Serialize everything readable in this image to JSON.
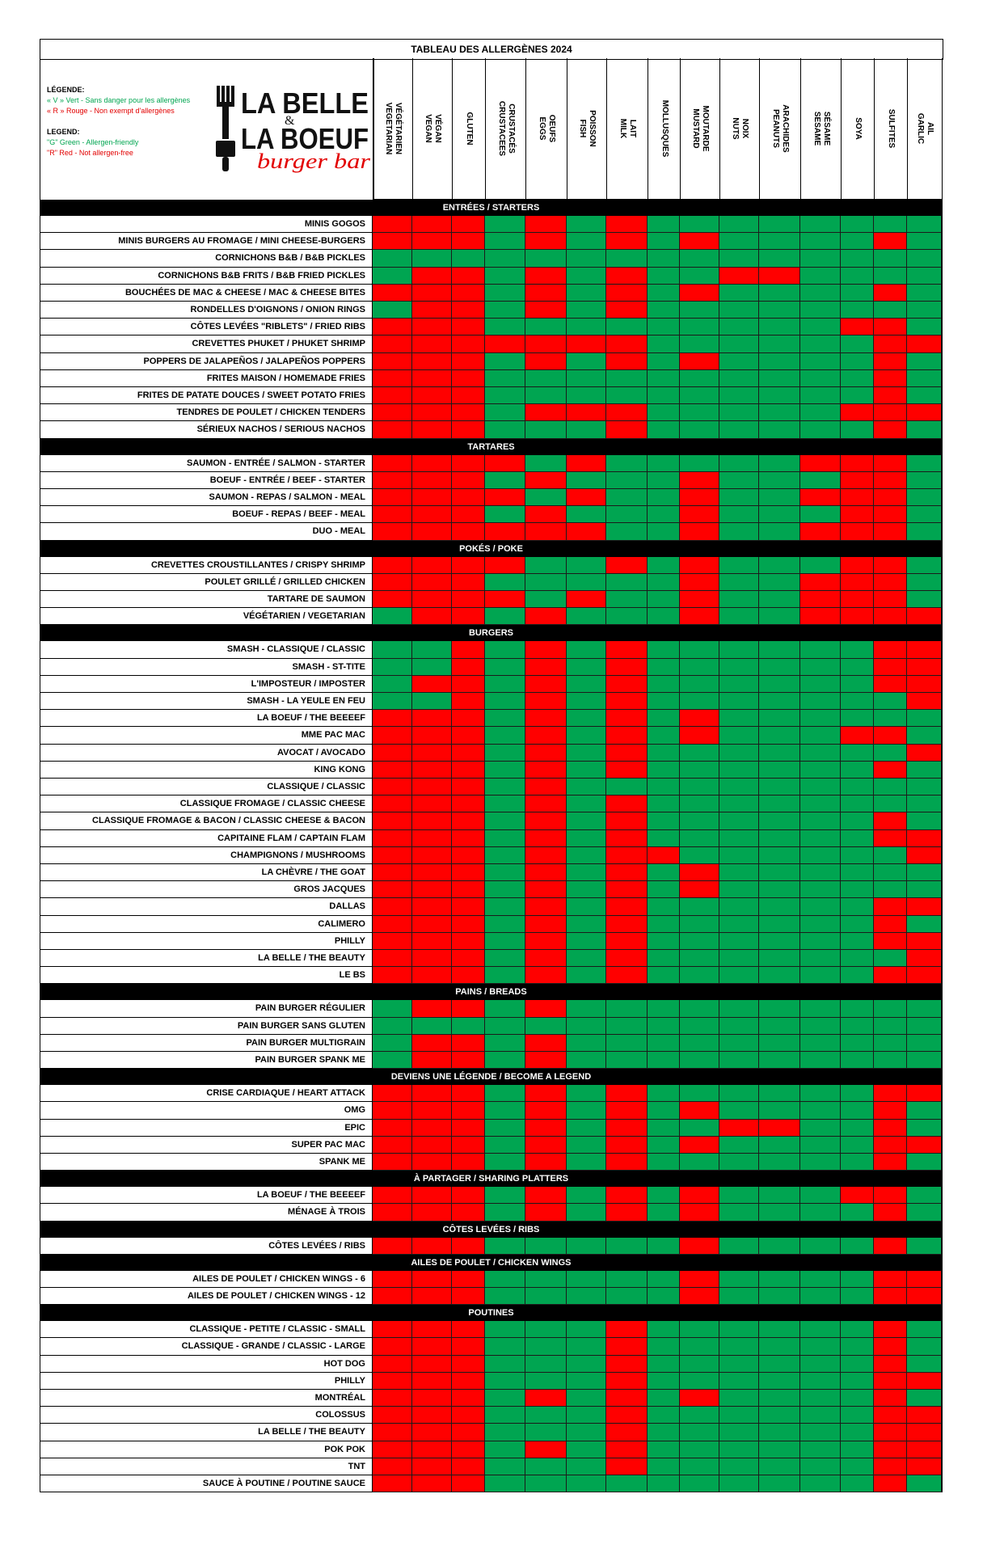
{
  "title": "TABLEAU DES ALLERGÈNES 2024",
  "legend": {
    "fr_title": "LÉGENDE:",
    "fr_green": "« V » Vert - Sans danger pour les allergènes",
    "fr_red": "« R » Rouge - Non exempt d'allergènes",
    "en_title": "LEGEND:",
    "en_green": "\"G\" Green - Allergen-friendly",
    "en_red": "\"R\" Red - Not allergen-free"
  },
  "logo": {
    "line1": "LA BELLE",
    "amp": "&",
    "line2": "LA BOEUF",
    "script": "burger bar"
  },
  "colors": {
    "green": "#00a551",
    "red": "#ff0000",
    "section": "#000000"
  },
  "columns": [
    "VÉGÉTARIEN\nVEGETARIAN",
    "VÉGAN\nVEGAN",
    "GLUTEN",
    "CRUSTACÉS\nCRUSTACEES",
    "OEUFS\nEGGS",
    "POISSON\nFISH",
    "LAIT\nMILK",
    "MOLLUSQUES",
    "MOUTARDE\nMUSTARD",
    "NOIX\nNUTS",
    "ARACHIDES\nPEANUTS",
    "SÉSAME\nSESAME",
    "SOYA",
    "SULFITES",
    "AIL\nGARLIC"
  ],
  "sections": [
    {
      "name": "ENTRÉES / STARTERS",
      "items": [
        {
          "name": "MINIS GOGOS",
          "cells": "RRRGRGRGGGGGGGG"
        },
        {
          "name": "MINIS BURGERS AU FROMAGE / MINI CHEESE-BURGERS",
          "cells": "RRRGRGRGRGGGGRG"
        },
        {
          "name": "CORNICHONS B&B / B&B PICKLES",
          "cells": "GGGGGGGGGGGGGGG"
        },
        {
          "name": "CORNICHONS B&B FRITS / B&B FRIED PICKLES",
          "cells": "GRRGRGRGGRRGGGG"
        },
        {
          "name": "BOUCHÉES DE MAC & CHEESE / MAC & CHEESE BITES",
          "cells": "RRRGRGRGRGGGGRG"
        },
        {
          "name": "RONDELLES D'OIGNONS / ONION RINGS",
          "cells": "GRRGRGRGGGGGGGG"
        },
        {
          "name": "CÔTES LEVÉES \"RIBLETS\" / FRIED RIBS",
          "cells": "RRRGGGGGGGGGRRG"
        },
        {
          "name": "CREVETTES PHUKET / PHUKET SHRIMP",
          "cells": "RRRRRRRGGGGGGRR"
        },
        {
          "name": "POPPERS DE JALAPEÑOS / JALAPEÑOS POPPERS",
          "cells": "RRRGRGRGRGGGGRG"
        },
        {
          "name": "FRITES MAISON / HOMEMADE FRIES",
          "cells": "RRRGGGGGGGGGGRG"
        },
        {
          "name": "FRITES DE PATATE DOUCES / SWEET POTATO FRIES",
          "cells": "RRRGGGGGGGGGGRG"
        },
        {
          "name": "TENDRES DE POULET / CHICKEN TENDERS",
          "cells": "RRRGRRRGGGGGRRR"
        },
        {
          "name": "SÉRIEUX NACHOS / SERIOUS NACHOS",
          "cells": "RRRGGGRGGGGGGRG"
        }
      ]
    },
    {
      "name": "TARTARES",
      "items": [
        {
          "name": "SAUMON - ENTRÉE / SALMON - STARTER",
          "cells": "RRRRGRGGGGGRRRG"
        },
        {
          "name": "BOEUF - ENTRÉE / BEEF - STARTER",
          "cells": "RRRGRGGGRGGGRRG"
        },
        {
          "name": "SAUMON - REPAS / SALMON - MEAL",
          "cells": "RRRRGRGGRGGRRRG"
        },
        {
          "name": "BOEUF - REPAS / BEEF - MEAL",
          "cells": "RRRGRGGGRGGGRRG"
        },
        {
          "name": "DUO - MEAL",
          "cells": "RRRRRRGGRGGRRRG"
        }
      ]
    },
    {
      "name": "POKÉS / POKE",
      "items": [
        {
          "name": "CREVETTES CROUSTILLANTES / CRISPY SHRIMP",
          "cells": "RRRRGGRGRGGGRRG"
        },
        {
          "name": "POULET GRILLÉ / GRILLED CHICKEN",
          "cells": "RRRGGGGGRGGRRRG"
        },
        {
          "name": "TARTARE DE SAUMON",
          "cells": "RRRRGRGGRGGRRRG"
        },
        {
          "name": "VÉGÉTARIEN / VEGETARIAN",
          "cells": "GRRGRGGGRGGRRRR"
        }
      ]
    },
    {
      "name": "BURGERS",
      "items": [
        {
          "name": "SMASH - CLASSIQUE / CLASSIC",
          "cells": "GGRGRGRGGGGGGRR"
        },
        {
          "name": "SMASH - ST-TITE",
          "cells": "GGRGRGRGGGGGGRR"
        },
        {
          "name": "L'IMPOSTEUR / IMPOSTER",
          "cells": "GRRGRGRGGGGGGRR"
        },
        {
          "name": "SMASH - LA YEULE EN FEU",
          "cells": "GGRGRGRGGGGGGGR"
        },
        {
          "name": "LA BOEUF / THE BEEEEF",
          "cells": "RRRGRGRGRGGGGGG"
        },
        {
          "name": "MME PAC MAC",
          "cells": "RRRGRGRGRGGGRRG"
        },
        {
          "name": "AVOCAT / AVOCADO",
          "cells": "RRRGRGRGGGGGGGR"
        },
        {
          "name": "KING KONG",
          "cells": "RRRGRGRGGGGGGRG"
        },
        {
          "name": "CLASSIQUE / CLASSIC",
          "cells": "RRRGRGGGGGGGGGG"
        },
        {
          "name": "CLASSIQUE FROMAGE / CLASSIC CHEESE",
          "cells": "RRRGRGRGGGGGGGG"
        },
        {
          "name": "CLASSIQUE FROMAGE & BACON / CLASSIC CHEESE & BACON",
          "cells": "RRRGRGRGGGGGGRG"
        },
        {
          "name": "CAPITAINE FLAM / CAPTAIN FLAM",
          "cells": "RRRGRGRGGGGGGRR"
        },
        {
          "name": "CHAMPIGNONS / MUSHROOMS",
          "cells": "RRRGRGRRGGGGGGR"
        },
        {
          "name": "LA CHÈVRE / THE GOAT",
          "cells": "RRRGRGRGRGGGGGG"
        },
        {
          "name": "GROS JACQUES",
          "cells": "RRRGRGRGRGGGGGG"
        },
        {
          "name": "DALLAS",
          "cells": "RRRGRGRGGGGGGRR"
        },
        {
          "name": "CALIMERO",
          "cells": "RRRGRGRGGGGGGRG"
        },
        {
          "name": "PHILLY",
          "cells": "RRRGRGRGGGGGGRR"
        },
        {
          "name": "LA BELLE / THE BEAUTY",
          "cells": "RRRGRGRGGGGGGGR"
        },
        {
          "name": "LE BS",
          "cells": "RRRGRGRGGGGGGRR"
        }
      ]
    },
    {
      "name": "PAINS / BREADS",
      "items": [
        {
          "name": "PAIN BURGER RÉGULIER",
          "cells": "GRRGRGGGGGGGGGG"
        },
        {
          "name": "PAIN BURGER SANS GLUTEN",
          "cells": "GGGGGGGGGGGGGGG"
        },
        {
          "name": "PAIN BURGER MULTIGRAIN",
          "cells": "GRRGRGGGGGGGGGG"
        },
        {
          "name": "PAIN BURGER SPANK ME",
          "cells": "GRRGRGGGGGGGGGG"
        }
      ]
    },
    {
      "name": "DEVIENS UNE LÉGENDE / BECOME A LEGEND",
      "items": [
        {
          "name": "CRISE CARDIAQUE / HEART ATTACK",
          "cells": "RRRGRGRGGGGGGRR"
        },
        {
          "name": "OMG",
          "cells": "RRRGRGRGRGGGGRG"
        },
        {
          "name": "EPIC",
          "cells": "RRRGRGRGGRRGGRG"
        },
        {
          "name": "SUPER PAC MAC",
          "cells": "RRRGRGRGRGGGGRR"
        },
        {
          "name": "SPANK ME",
          "cells": "RRRGRGRGGGGGGRG"
        }
      ]
    },
    {
      "name": "À PARTAGER / SHARING PLATTERS",
      "items": [
        {
          "name": "LA BOEUF / THE BEEEEF",
          "cells": "RRRGRGRGRGGGRRG"
        },
        {
          "name": "MÉNAGE À TROIS",
          "cells": "RRRGRGRGRGGGGRG"
        }
      ]
    },
    {
      "name": "CÔTES LEVÉES / RIBS",
      "items": [
        {
          "name": "CÔTES LEVÉES / RIBS",
          "cells": "RRRGGGGGRGGGGRG"
        }
      ]
    },
    {
      "name": "AILES DE POULET / CHICKEN WINGS",
      "items": [
        {
          "name": "AILES DE POULET / CHICKEN WINGS - 6",
          "cells": "RRRGGGGGRGGGGRR"
        },
        {
          "name": "AILES DE POULET / CHICKEN WINGS - 12",
          "cells": "RRRGGGGGRGGGGRR"
        }
      ]
    },
    {
      "name": "POUTINES",
      "items": [
        {
          "name": "CLASSIQUE - PETITE / CLASSIC - SMALL",
          "cells": "RRRGGGRGGGGGGRG"
        },
        {
          "name": "CLASSIQUE - GRANDE / CLASSIC - LARGE",
          "cells": "RRRGGGRGGGGGGRG"
        },
        {
          "name": "HOT DOG",
          "cells": "RRRGGGRGGGGGGRG"
        },
        {
          "name": "PHILLY",
          "cells": "RRRGGGRGGGGGGRR"
        },
        {
          "name": "MONTRÉAL",
          "cells": "RRRGRGRGRGGGGRG"
        },
        {
          "name": "COLOSSUS",
          "cells": "RRRGGGRGGGGGGRR"
        },
        {
          "name": "LA BELLE / THE BEAUTY",
          "cells": "RRRGGGRGGGGGGRR"
        },
        {
          "name": "POK POK",
          "cells": "RRRGRGRGGGGGGRR"
        },
        {
          "name": "TNT",
          "cells": "RRRGGGRGGGGGGRR"
        },
        {
          "name": "SAUCE À POUTINE / POUTINE SAUCE",
          "cells": "RRRGGGGGGGGGGRG"
        }
      ]
    }
  ]
}
